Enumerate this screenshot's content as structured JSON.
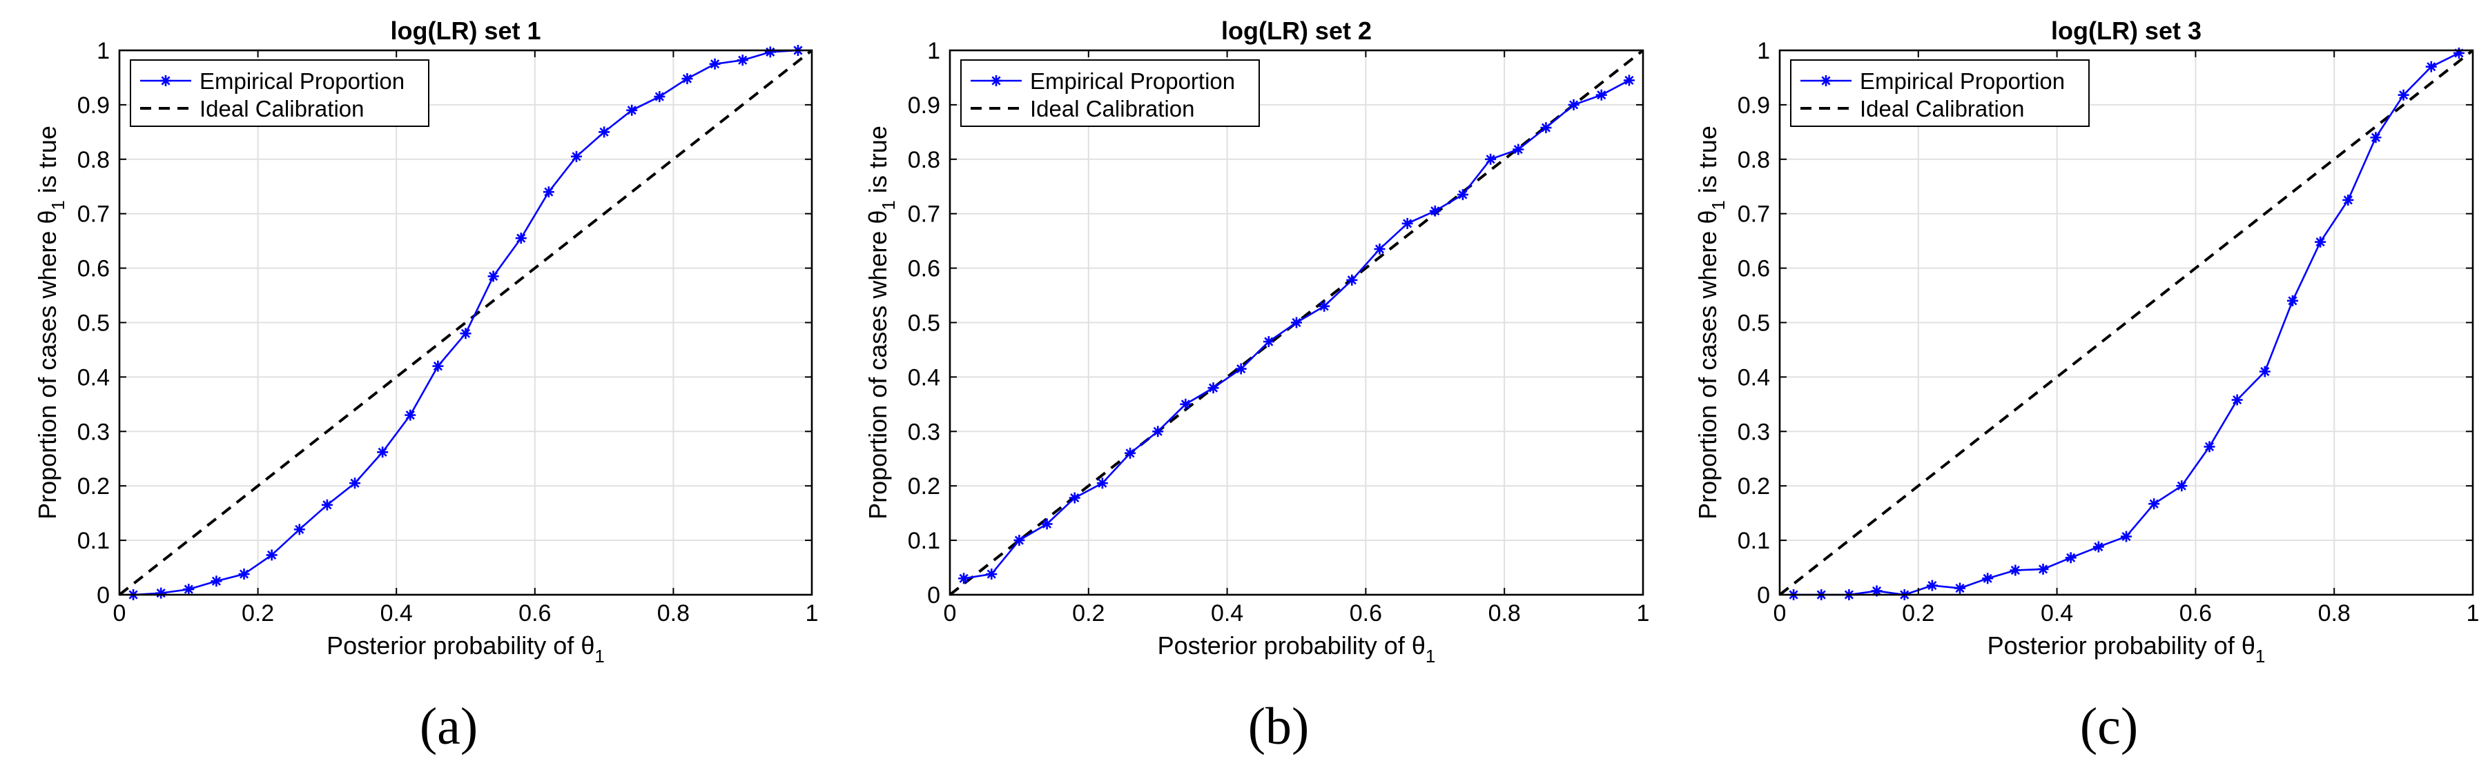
{
  "colors": {
    "empirical": "#0000ff",
    "ideal": "#000000",
    "grid": "#e0e0e0",
    "axis": "#000000"
  },
  "chart_data": [
    {
      "type": "line",
      "title": "log(LR) set 1",
      "xlabel_prefix": "Posterior probability of θ",
      "xlabel_sub": "1",
      "ylabel_prefix": "Proportion of cases where θ",
      "ylabel_sub": "1",
      "ylabel_suffix": " is true",
      "xlim": [
        0,
        1
      ],
      "ylim": [
        0,
        1
      ],
      "xticks": [
        0,
        0.2,
        0.4,
        0.6,
        0.8,
        1
      ],
      "xtick_labels": [
        "0",
        "0.2",
        "0.4",
        "0.6",
        "0.8",
        "1"
      ],
      "yticks": [
        0,
        0.1,
        0.2,
        0.3,
        0.4,
        0.5,
        0.6,
        0.7,
        0.8,
        0.9,
        1
      ],
      "ytick_labels": [
        "0",
        "0.1",
        "0.2",
        "0.3",
        "0.4",
        "0.5",
        "0.6",
        "0.7",
        "0.8",
        "0.9",
        "1"
      ],
      "grid": true,
      "legend_position": "top-left",
      "series": [
        {
          "name": "Empirical Proportion",
          "style": "solid-star",
          "x": [
            0.02,
            0.06,
            0.1,
            0.14,
            0.18,
            0.22,
            0.26,
            0.3,
            0.34,
            0.38,
            0.42,
            0.46,
            0.5,
            0.54,
            0.58,
            0.62,
            0.66,
            0.7,
            0.74,
            0.78,
            0.82,
            0.86,
            0.9,
            0.94,
            0.98
          ],
          "y": [
            0.0,
            0.003,
            0.01,
            0.025,
            0.038,
            0.073,
            0.12,
            0.165,
            0.205,
            0.262,
            0.33,
            0.42,
            0.48,
            0.585,
            0.655,
            0.74,
            0.805,
            0.85,
            0.89,
            0.915,
            0.948,
            0.975,
            0.982,
            0.997,
            1.0
          ]
        },
        {
          "name": "Ideal Calibration",
          "style": "dashed",
          "x": [
            0,
            1
          ],
          "y": [
            0,
            1
          ]
        }
      ],
      "caption": "(a)"
    },
    {
      "type": "line",
      "title": "log(LR) set 2",
      "xlabel_prefix": "Posterior probability of θ",
      "xlabel_sub": "1",
      "ylabel_prefix": "Proportion of cases where θ",
      "ylabel_sub": "1",
      "ylabel_suffix": " is true",
      "xlim": [
        0,
        1
      ],
      "ylim": [
        0,
        1
      ],
      "xticks": [
        0,
        0.2,
        0.4,
        0.6,
        0.8,
        1
      ],
      "xtick_labels": [
        "0",
        "0.2",
        "0.4",
        "0.6",
        "0.8",
        "1"
      ],
      "yticks": [
        0,
        0.1,
        0.2,
        0.3,
        0.4,
        0.5,
        0.6,
        0.7,
        0.8,
        0.9,
        1
      ],
      "ytick_labels": [
        "0",
        "0.1",
        "0.2",
        "0.3",
        "0.4",
        "0.5",
        "0.6",
        "0.7",
        "0.8",
        "0.9",
        "1"
      ],
      "grid": true,
      "legend_position": "top-left",
      "series": [
        {
          "name": "Empirical Proportion",
          "style": "solid-star",
          "x": [
            0.02,
            0.06,
            0.1,
            0.14,
            0.18,
            0.22,
            0.26,
            0.3,
            0.34,
            0.38,
            0.42,
            0.46,
            0.5,
            0.54,
            0.58,
            0.62,
            0.66,
            0.7,
            0.74,
            0.78,
            0.82,
            0.86,
            0.9,
            0.94,
            0.98
          ],
          "y": [
            0.03,
            0.038,
            0.1,
            0.13,
            0.178,
            0.205,
            0.26,
            0.3,
            0.35,
            0.38,
            0.415,
            0.465,
            0.5,
            0.53,
            0.578,
            0.635,
            0.682,
            0.705,
            0.735,
            0.8,
            0.818,
            0.858,
            0.9,
            0.918,
            0.945
          ]
        },
        {
          "name": "Ideal Calibration",
          "style": "dashed",
          "x": [
            0,
            1
          ],
          "y": [
            0,
            1
          ]
        }
      ],
      "caption": "(b)"
    },
    {
      "type": "line",
      "title": "log(LR) set 3",
      "xlabel_prefix": "Posterior probability of θ",
      "xlabel_sub": "1",
      "ylabel_prefix": "Proportion of cases where θ",
      "ylabel_sub": "1",
      "ylabel_suffix": " is true",
      "xlim": [
        0,
        1
      ],
      "ylim": [
        0,
        1
      ],
      "xticks": [
        0,
        0.2,
        0.4,
        0.6,
        0.8,
        1
      ],
      "xtick_labels": [
        "0",
        "0.2",
        "0.4",
        "0.6",
        "0.8",
        "1"
      ],
      "yticks": [
        0,
        0.1,
        0.2,
        0.3,
        0.4,
        0.5,
        0.6,
        0.7,
        0.8,
        0.9,
        1
      ],
      "ytick_labels": [
        "0",
        "0.1",
        "0.2",
        "0.3",
        "0.4",
        "0.5",
        "0.6",
        "0.7",
        "0.8",
        "0.9",
        "1"
      ],
      "grid": true,
      "legend_position": "top-left",
      "series": [
        {
          "name": "Empirical Proportion",
          "style": "solid-star",
          "x": [
            0.02,
            0.06,
            0.1,
            0.14,
            0.18,
            0.22,
            0.26,
            0.3,
            0.34,
            0.38,
            0.42,
            0.46,
            0.5,
            0.54,
            0.58,
            0.62,
            0.66,
            0.7,
            0.74,
            0.78,
            0.82,
            0.86,
            0.9,
            0.94,
            0.98
          ],
          "y": [
            0.0,
            0.0,
            0.0,
            0.007,
            0.0,
            0.017,
            0.012,
            0.03,
            0.045,
            0.047,
            0.068,
            0.088,
            0.107,
            0.167,
            0.2,
            0.272,
            0.358,
            0.41,
            0.54,
            0.648,
            0.725,
            0.84,
            0.918,
            0.97,
            0.995
          ]
        },
        {
          "name": "Ideal Calibration",
          "style": "dashed",
          "x": [
            0,
            1
          ],
          "y": [
            0,
            1
          ]
        }
      ],
      "caption": "(c)"
    }
  ]
}
